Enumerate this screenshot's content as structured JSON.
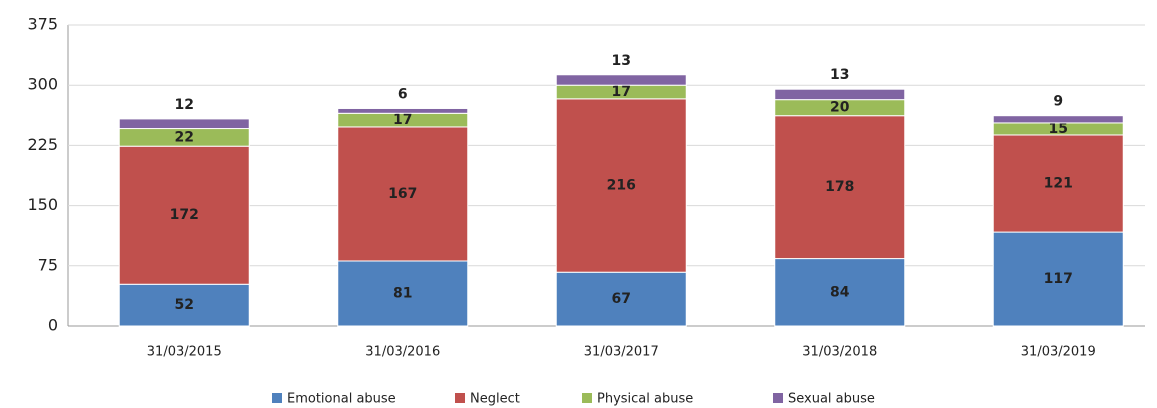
{
  "chart_data": {
    "type": "stacked_bar",
    "categories": [
      "31/03/2015",
      "31/03/2016",
      "31/03/2017",
      "31/03/2018",
      "31/03/2019"
    ],
    "series": [
      {
        "name": "Emotional abuse",
        "color": "#4f81bd",
        "values": [
          52,
          81,
          67,
          84,
          117
        ]
      },
      {
        "name": "Neglect",
        "color": "#c0504d",
        "values": [
          172,
          167,
          216,
          178,
          121
        ]
      },
      {
        "name": "Physical abuse",
        "color": "#9bbb59",
        "values": [
          22,
          17,
          17,
          20,
          15
        ]
      },
      {
        "name": "Sexual abuse",
        "color": "#8064a2",
        "values": [
          12,
          6,
          13,
          13,
          9
        ]
      }
    ],
    "ylim": [
      0,
      375
    ],
    "yticks": [
      0,
      75,
      150,
      225,
      300,
      375
    ],
    "grid": true,
    "legend": "bottom"
  }
}
